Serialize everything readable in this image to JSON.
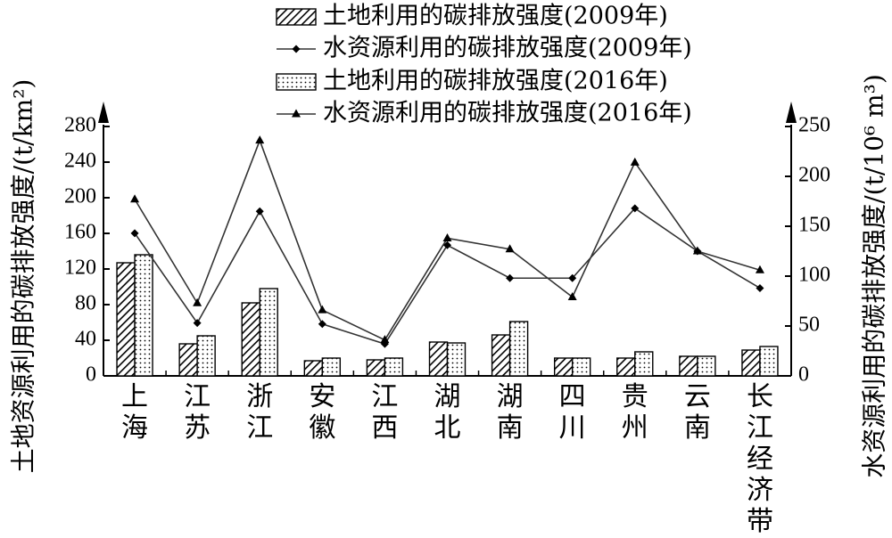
{
  "chart_data": {
    "type": "bar+line",
    "categories": [
      "上海",
      "江苏",
      "浙江",
      "安徽",
      "江西",
      "湖北",
      "湖南",
      "四川",
      "贵州",
      "云南",
      "长江经济带"
    ],
    "ylabel_left": "土地资源利用的碳排放强度/(t/km²)",
    "ylabel_right": "水资源利用的碳排放强度/(t/10⁶ m³)",
    "ylim_left": [
      0,
      280
    ],
    "yticks_left": [
      0,
      40,
      80,
      120,
      160,
      200,
      240,
      280
    ],
    "ylim_right": [
      0,
      250
    ],
    "yticks_right": [
      0,
      50,
      100,
      150,
      200,
      250
    ],
    "series": [
      {
        "name": "土地利用的碳排放强度(2009年)",
        "kind": "bar",
        "axis": "left",
        "pattern": "hatch",
        "values": [
          127,
          36,
          82,
          17,
          18,
          38,
          46,
          20,
          20,
          22,
          29
        ]
      },
      {
        "name": "土地利用的碳排放强度(2016年)",
        "kind": "bar",
        "axis": "left",
        "pattern": "dots",
        "values": [
          136,
          45,
          98,
          20,
          20,
          37,
          61,
          20,
          27,
          22,
          33
        ]
      },
      {
        "name": "水资源利用的碳排放强度(2009年)",
        "kind": "line",
        "axis": "right",
        "marker": "diamond",
        "values": [
          143,
          53,
          165,
          52,
          32,
          131,
          98,
          98,
          168,
          125,
          88
        ]
      },
      {
        "name": "水资源利用的碳排放强度(2016年)",
        "kind": "line",
        "axis": "right",
        "marker": "triangle",
        "values": [
          177,
          73,
          236,
          66,
          36,
          138,
          127,
          79,
          214,
          125,
          106
        ]
      }
    ],
    "legend_position": "top-center",
    "grid": false
  }
}
